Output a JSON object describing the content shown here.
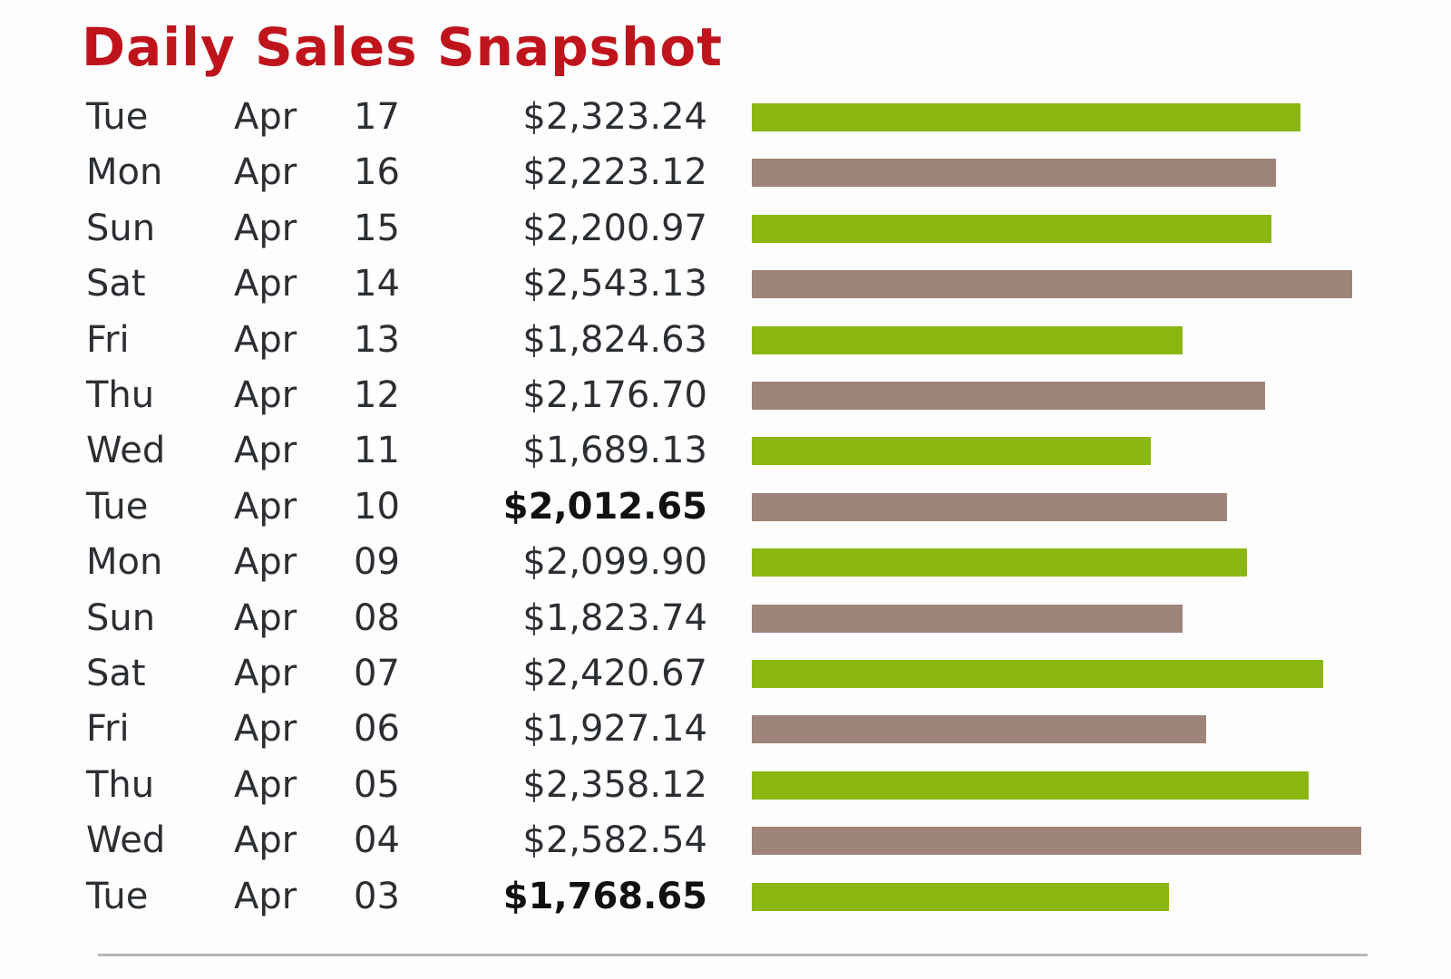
{
  "colors": {
    "title": "#c0141c",
    "bar_green": "#8ab711",
    "bar_brown": "#9e8479"
  },
  "chart_data": {
    "type": "bar",
    "orientation": "horizontal",
    "title": "Daily Sales Snapshot",
    "scale_max": 2582.54,
    "rows": [
      {
        "day": "Tue",
        "month": "Apr",
        "date": "17",
        "amount_label": "$2,323.24",
        "value": 2323.24,
        "bold": false,
        "color": "green"
      },
      {
        "day": "Mon",
        "month": "Apr",
        "date": "16",
        "amount_label": "$2,223.12",
        "value": 2223.12,
        "bold": false,
        "color": "brown"
      },
      {
        "day": "Sun",
        "month": "Apr",
        "date": "15",
        "amount_label": "$2,200.97",
        "value": 2200.97,
        "bold": false,
        "color": "green"
      },
      {
        "day": "Sat",
        "month": "Apr",
        "date": "14",
        "amount_label": "$2,543.13",
        "value": 2543.13,
        "bold": false,
        "color": "brown"
      },
      {
        "day": "Fri",
        "month": "Apr",
        "date": "13",
        "amount_label": "$1,824.63",
        "value": 1824.63,
        "bold": false,
        "color": "green"
      },
      {
        "day": "Thu",
        "month": "Apr",
        "date": "12",
        "amount_label": "$2,176.70",
        "value": 2176.7,
        "bold": false,
        "color": "brown"
      },
      {
        "day": "Wed",
        "month": "Apr",
        "date": "11",
        "amount_label": "$1,689.13",
        "value": 1689.13,
        "bold": false,
        "color": "green"
      },
      {
        "day": "Tue",
        "month": "Apr",
        "date": "10",
        "amount_label": "$2,012.65",
        "value": 2012.65,
        "bold": true,
        "color": "brown"
      },
      {
        "day": "Mon",
        "month": "Apr",
        "date": "09",
        "amount_label": "$2,099.90",
        "value": 2099.9,
        "bold": false,
        "color": "green"
      },
      {
        "day": "Sun",
        "month": "Apr",
        "date": "08",
        "amount_label": "$1,823.74",
        "value": 1823.74,
        "bold": false,
        "color": "brown"
      },
      {
        "day": "Sat",
        "month": "Apr",
        "date": "07",
        "amount_label": "$2,420.67",
        "value": 2420.67,
        "bold": false,
        "color": "green"
      },
      {
        "day": "Fri",
        "month": "Apr",
        "date": "06",
        "amount_label": "$1,927.14",
        "value": 1927.14,
        "bold": false,
        "color": "brown"
      },
      {
        "day": "Thu",
        "month": "Apr",
        "date": "05",
        "amount_label": "$2,358.12",
        "value": 2358.12,
        "bold": false,
        "color": "green"
      },
      {
        "day": "Wed",
        "month": "Apr",
        "date": "04",
        "amount_label": "$2,582.54",
        "value": 2582.54,
        "bold": false,
        "color": "brown"
      },
      {
        "day": "Tue",
        "month": "Apr",
        "date": "03",
        "amount_label": "$1,768.65",
        "value": 1768.65,
        "bold": true,
        "color": "green"
      }
    ]
  }
}
